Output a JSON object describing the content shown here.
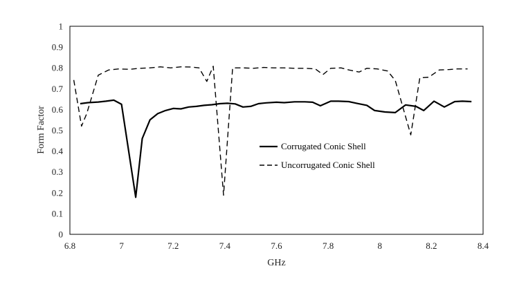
{
  "chart_data": {
    "type": "line",
    "xlabel": "GHz",
    "ylabel": "Form Factor",
    "xlim": [
      6.8,
      8.4
    ],
    "ylim": [
      0,
      1
    ],
    "xticks": [
      "6.8",
      "7",
      "7.2",
      "7.4",
      "7.6",
      "7.8",
      "8",
      "8.2",
      "8.4"
    ],
    "yticks": [
      "0",
      "0.1",
      "0.2",
      "0.3",
      "0.4",
      "0.5",
      "0.6",
      "0.7",
      "0.8",
      "0.9",
      "1"
    ],
    "grid": false,
    "legend_position": "center-right",
    "series": [
      {
        "name": "Corrugated Conic Shell",
        "style": "solid",
        "color": "#000000",
        "points": [
          [
            6.84,
            0.628
          ],
          [
            6.87,
            0.633
          ],
          [
            6.91,
            0.636
          ],
          [
            6.94,
            0.64
          ],
          [
            6.97,
            0.645
          ],
          [
            7.0,
            0.625
          ],
          [
            7.055,
            0.178
          ],
          [
            7.08,
            0.46
          ],
          [
            7.11,
            0.55
          ],
          [
            7.14,
            0.58
          ],
          [
            7.17,
            0.595
          ],
          [
            7.2,
            0.605
          ],
          [
            7.23,
            0.603
          ],
          [
            7.26,
            0.612
          ],
          [
            7.29,
            0.615
          ],
          [
            7.32,
            0.62
          ],
          [
            7.35,
            0.623
          ],
          [
            7.38,
            0.628
          ],
          [
            7.41,
            0.63
          ],
          [
            7.44,
            0.627
          ],
          [
            7.47,
            0.612
          ],
          [
            7.5,
            0.615
          ],
          [
            7.53,
            0.628
          ],
          [
            7.56,
            0.632
          ],
          [
            7.6,
            0.635
          ],
          [
            7.63,
            0.633
          ],
          [
            7.67,
            0.637
          ],
          [
            7.71,
            0.637
          ],
          [
            7.74,
            0.635
          ],
          [
            7.77,
            0.618
          ],
          [
            7.81,
            0.64
          ],
          [
            7.84,
            0.64
          ],
          [
            7.88,
            0.638
          ],
          [
            7.91,
            0.63
          ],
          [
            7.95,
            0.62
          ],
          [
            7.98,
            0.595
          ],
          [
            8.02,
            0.588
          ],
          [
            8.06,
            0.585
          ],
          [
            8.1,
            0.622
          ],
          [
            8.14,
            0.615
          ],
          [
            8.17,
            0.595
          ],
          [
            8.21,
            0.64
          ],
          [
            8.25,
            0.612
          ],
          [
            8.29,
            0.638
          ],
          [
            8.32,
            0.64
          ],
          [
            8.355,
            0.638
          ]
        ]
      },
      {
        "name": "Uncorrugated Conic Shell",
        "style": "dashed",
        "color": "#000000",
        "points": [
          [
            6.815,
            0.742
          ],
          [
            6.845,
            0.52
          ],
          [
            6.865,
            0.58
          ],
          [
            6.91,
            0.765
          ],
          [
            6.95,
            0.79
          ],
          [
            6.99,
            0.795
          ],
          [
            7.03,
            0.793
          ],
          [
            7.07,
            0.798
          ],
          [
            7.11,
            0.8
          ],
          [
            7.15,
            0.805
          ],
          [
            7.19,
            0.8
          ],
          [
            7.23,
            0.805
          ],
          [
            7.27,
            0.804
          ],
          [
            7.3,
            0.8
          ],
          [
            7.33,
            0.735
          ],
          [
            7.355,
            0.808
          ],
          [
            7.395,
            0.188
          ],
          [
            7.43,
            0.8
          ],
          [
            7.47,
            0.8
          ],
          [
            7.51,
            0.798
          ],
          [
            7.55,
            0.802
          ],
          [
            7.59,
            0.8
          ],
          [
            7.63,
            0.8
          ],
          [
            7.67,
            0.798
          ],
          [
            7.71,
            0.798
          ],
          [
            7.75,
            0.795
          ],
          [
            7.78,
            0.768
          ],
          [
            7.81,
            0.798
          ],
          [
            7.85,
            0.8
          ],
          [
            7.88,
            0.79
          ],
          [
            7.92,
            0.78
          ],
          [
            7.95,
            0.798
          ],
          [
            7.99,
            0.795
          ],
          [
            8.03,
            0.785
          ],
          [
            8.06,
            0.74
          ],
          [
            8.12,
            0.478
          ],
          [
            8.155,
            0.752
          ],
          [
            8.19,
            0.755
          ],
          [
            8.23,
            0.79
          ],
          [
            8.27,
            0.792
          ],
          [
            8.3,
            0.795
          ],
          [
            8.34,
            0.795
          ]
        ]
      }
    ]
  }
}
